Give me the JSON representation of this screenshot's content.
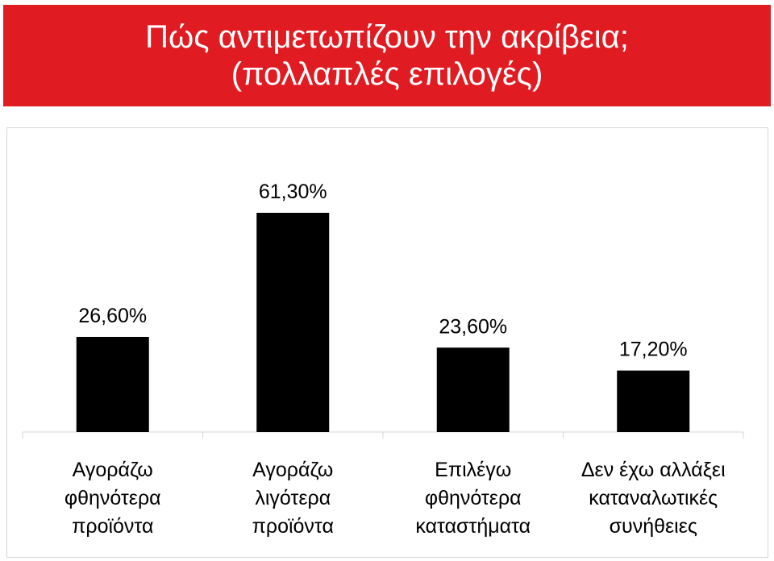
{
  "title": {
    "line1": "Πώς αντιμετωπίζουν την ακρίβεια;",
    "line2": "(πολλαπλές επιλογές)"
  },
  "colors": {
    "banner": "#e01b22",
    "bar": "#000000"
  },
  "chart_data": {
    "type": "bar",
    "categories": [
      [
        "Αγοράζω",
        "φθηνότερα",
        "προϊόντα"
      ],
      [
        "Αγοράζω",
        "λιγότερα",
        "προϊόντα"
      ],
      [
        "Επιλέγω",
        "φθηνότερα",
        "καταστήματα"
      ],
      [
        "Δεν έχω αλλάξει",
        "καταναλωτικές",
        "συνήθειες"
      ]
    ],
    "values": [
      26.6,
      61.3,
      23.6,
      17.2
    ],
    "data_labels": [
      "26,60%",
      "61,30%",
      "23,60%",
      "17,20%"
    ],
    "ylim": [
      0,
      70
    ],
    "grid": false,
    "legend": "none"
  }
}
